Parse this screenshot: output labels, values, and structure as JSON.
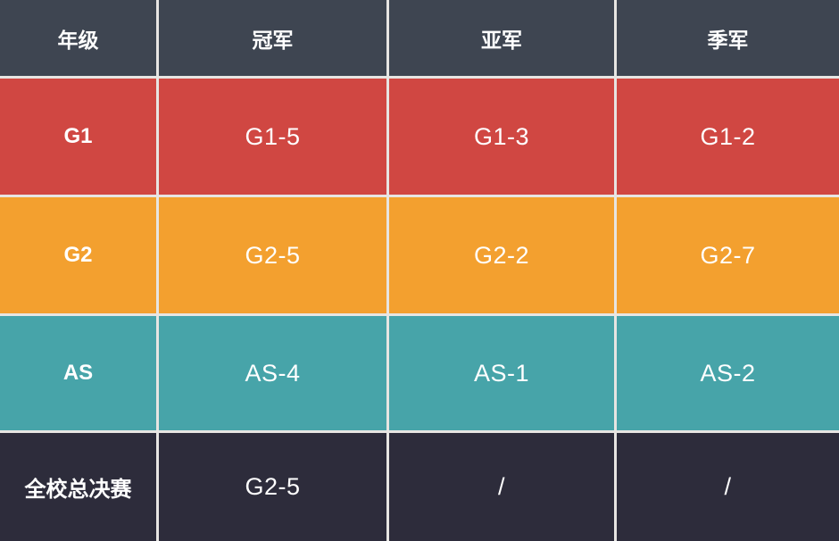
{
  "chart_data": {
    "type": "table",
    "columns": [
      "年级",
      "冠军",
      "亚军",
      "季军"
    ],
    "rows": [
      [
        "G1",
        "G1-5",
        "G1-3",
        "G1-2"
      ],
      [
        "G2",
        "G2-5",
        "G2-2",
        "G2-7"
      ],
      [
        "AS",
        "AS-4",
        "AS-1",
        "AS-2"
      ],
      [
        "全校总决赛",
        "G2-5",
        "/",
        "/"
      ]
    ]
  },
  "table": {
    "headers": [
      "年级",
      "冠军",
      "亚军",
      "季军"
    ],
    "rows": [
      {
        "label": "G1",
        "cells": [
          "G1-5",
          "G1-3",
          "G1-2"
        ],
        "bg": "#d04742"
      },
      {
        "label": "G2",
        "cells": [
          "G2-5",
          "G2-2",
          "G2-7"
        ],
        "bg": "#f3a02f"
      },
      {
        "label": "AS",
        "cells": [
          "AS-4",
          "AS-1",
          "AS-2"
        ],
        "bg": "#47a4a9"
      },
      {
        "label": "全校总决赛",
        "cells": [
          "G2-5",
          "/",
          "/"
        ],
        "bg": "#2d2c3b"
      }
    ],
    "colors": {
      "header_bg": "#3e4551",
      "border": "#e7e5e2",
      "text": "#ffffff"
    }
  }
}
